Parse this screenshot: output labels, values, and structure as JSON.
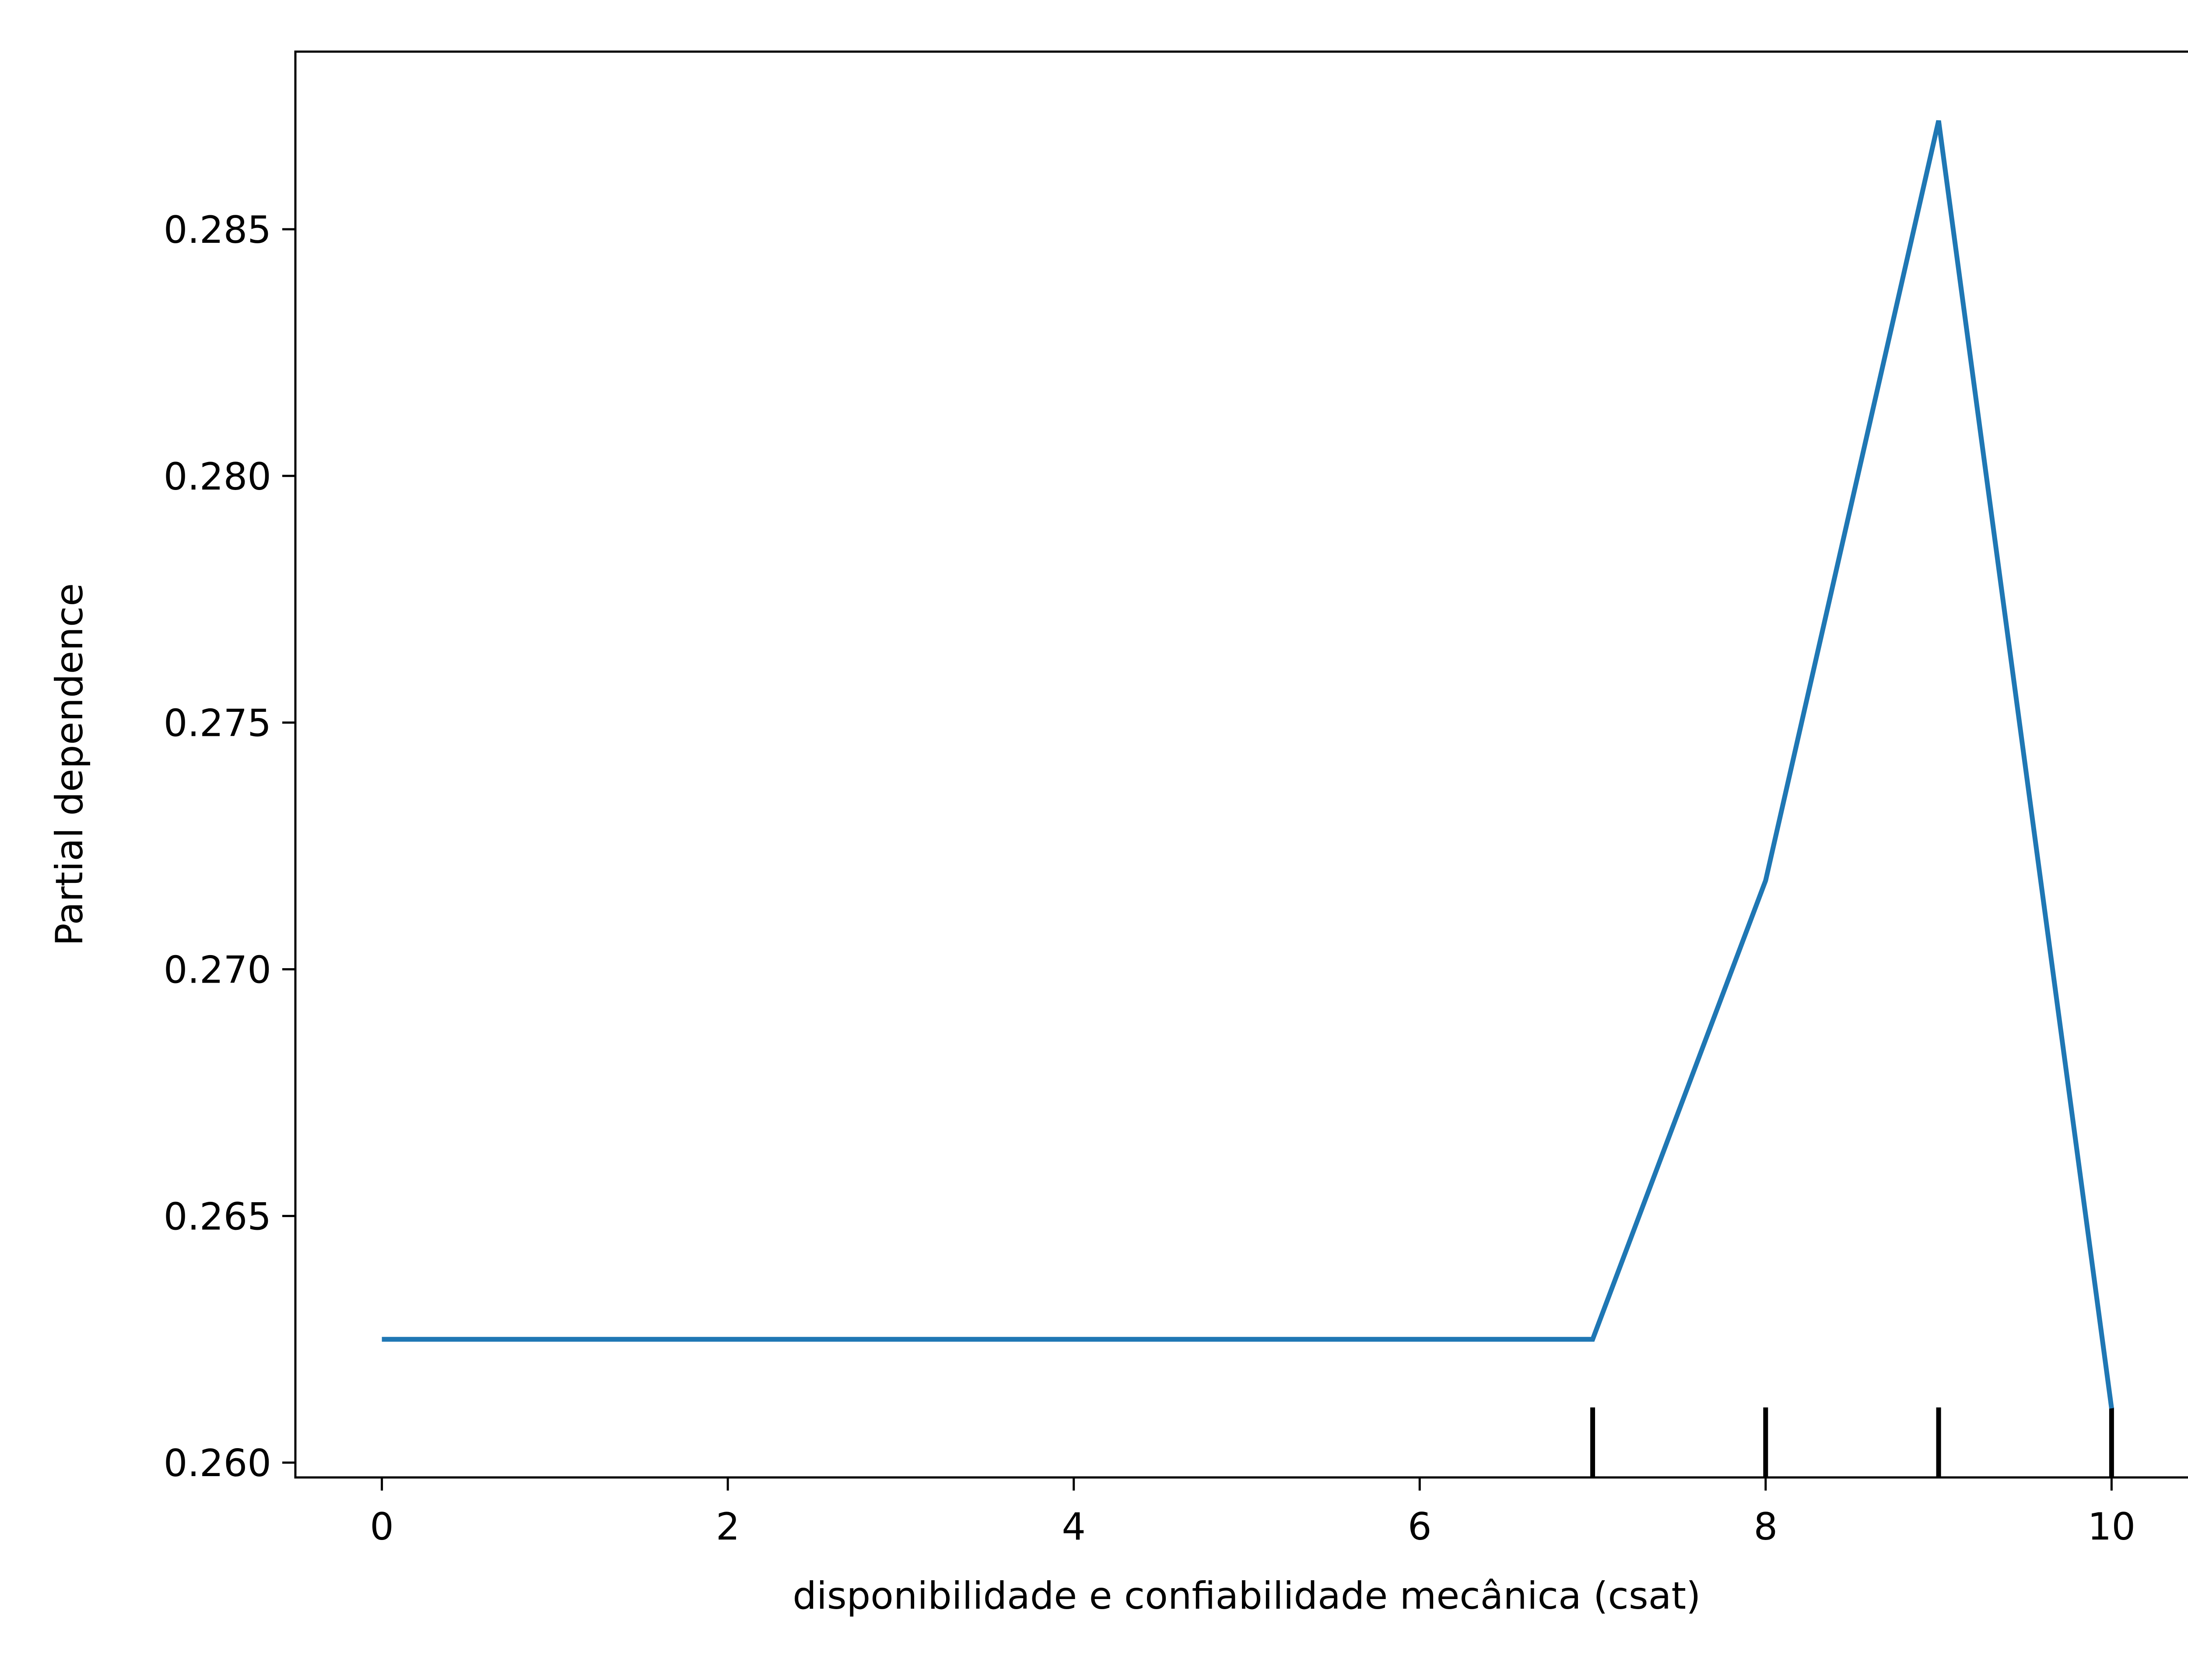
{
  "chart_data": {
    "type": "line",
    "title": "",
    "xlabel": "disponibilidade e confiabilidade mecânica  (csat)",
    "ylabel": "Partial dependence",
    "xlim": [
      -0.5,
      10.5
    ],
    "ylim": [
      0.2597,
      0.2886
    ],
    "x_ticks": [
      0,
      2,
      4,
      6,
      8,
      10
    ],
    "y_ticks": [
      0.26,
      0.265,
      0.27,
      0.275,
      0.28,
      0.285
    ],
    "x_tick_labels": [
      "0",
      "2",
      "4",
      "6",
      "8",
      "10"
    ],
    "y_tick_labels": [
      "0.260",
      "0.265",
      "0.270",
      "0.275",
      "0.280",
      "0.285"
    ],
    "grid": false,
    "series": [
      {
        "color": "#1f77b4",
        "x": [
          0,
          7,
          8,
          9,
          10
        ],
        "y": [
          0.2625,
          0.2625,
          0.2718,
          0.2872,
          0.2611
        ]
      }
    ],
    "rug": {
      "color": "#000000",
      "x": [
        7,
        8,
        9,
        10
      ]
    }
  }
}
